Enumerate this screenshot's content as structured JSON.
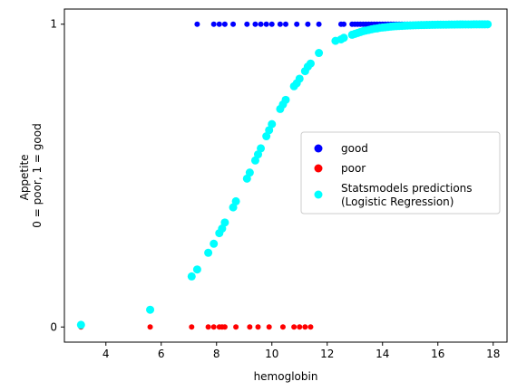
{
  "chart_data": {
    "type": "scatter",
    "xlabel": "hemoglobin",
    "ylabel_lines": [
      "Appetite",
      "0 = poor, 1 = good"
    ],
    "xlim": [
      2.5,
      18.5
    ],
    "ylim": [
      -0.05,
      1.05
    ],
    "x_ticks": [
      4,
      6,
      8,
      10,
      12,
      14,
      16,
      18
    ],
    "y_ticks": [
      0,
      1
    ],
    "grid": false,
    "legend_position": "center-right",
    "series": [
      {
        "name": "good",
        "color": "#0000ff",
        "marker_size": "small",
        "x": [
          7.3,
          7.9,
          8.1,
          8.3,
          8.6,
          9.1,
          9.4,
          9.6,
          9.8,
          10.0,
          10.3,
          10.5,
          10.9,
          11.3,
          11.7,
          12.5,
          12.6,
          12.9,
          13.0,
          13.1,
          13.2,
          13.3,
          13.4,
          13.5,
          13.6,
          13.7,
          13.8,
          13.9,
          14.0,
          14.1,
          14.2,
          14.3,
          14.4,
          14.5,
          14.6,
          14.7,
          14.8,
          14.9,
          15.0,
          15.1,
          15.2,
          15.3,
          15.4,
          15.5,
          15.6,
          15.7,
          15.8,
          15.9,
          16.0,
          16.1,
          16.2,
          16.3,
          16.4,
          16.5,
          16.6,
          16.7,
          16.8,
          16.9,
          17.0,
          17.1,
          17.2,
          17.3,
          17.4,
          17.5,
          17.6,
          17.7,
          17.8
        ],
        "y": [
          1,
          1,
          1,
          1,
          1,
          1,
          1,
          1,
          1,
          1,
          1,
          1,
          1,
          1,
          1,
          1,
          1,
          1,
          1,
          1,
          1,
          1,
          1,
          1,
          1,
          1,
          1,
          1,
          1,
          1,
          1,
          1,
          1,
          1,
          1,
          1,
          1,
          1,
          1,
          1,
          1,
          1,
          1,
          1,
          1,
          1,
          1,
          1,
          1,
          1,
          1,
          1,
          1,
          1,
          1,
          1,
          1,
          1,
          1,
          1,
          1,
          1,
          1,
          1,
          1,
          1,
          1
        ]
      },
      {
        "name": "poor",
        "color": "#ff0000",
        "marker_size": "small",
        "x": [
          3.1,
          5.6,
          7.1,
          7.7,
          7.9,
          8.1,
          8.2,
          8.3,
          8.7,
          9.2,
          9.5,
          9.9,
          10.4,
          10.8,
          11.0,
          11.2,
          11.4
        ],
        "y": [
          0,
          0,
          0,
          0,
          0,
          0,
          0,
          0,
          0,
          0,
          0,
          0,
          0,
          0,
          0,
          0,
          0
        ]
      },
      {
        "name": "Statsmodels predictions\n(Logistic Regression)",
        "legend_lines": [
          "Statsmodels predictions",
          "(Logistic Regression)"
        ],
        "color": "#00ffff",
        "marker_size": "large",
        "x": [
          3.1,
          5.6,
          7.1,
          7.3,
          7.7,
          7.9,
          8.1,
          8.2,
          8.3,
          8.6,
          8.7,
          9.1,
          9.2,
          9.4,
          9.5,
          9.6,
          9.8,
          9.9,
          10.0,
          10.3,
          10.4,
          10.5,
          10.8,
          10.9,
          11.0,
          11.2,
          11.3,
          11.4,
          11.7,
          12.3,
          12.5,
          12.6,
          12.9,
          13.0,
          13.1,
          13.2,
          13.3,
          13.4,
          13.5,
          13.6,
          13.7,
          13.8,
          13.9,
          14.0,
          14.1,
          14.2,
          14.3,
          14.4,
          14.5,
          14.6,
          14.7,
          14.8,
          14.9,
          15.0,
          15.1,
          15.2,
          15.3,
          15.4,
          15.5,
          15.6,
          15.7,
          15.8,
          15.9,
          16.0,
          16.1,
          16.2,
          16.3,
          16.4,
          16.5,
          16.6,
          16.7,
          16.8,
          16.9,
          17.0,
          17.1,
          17.2,
          17.3,
          17.4,
          17.5,
          17.6,
          17.7,
          17.8
        ],
        "y": [
          0.007,
          0.057,
          0.167,
          0.19,
          0.245,
          0.275,
          0.31,
          0.325,
          0.345,
          0.395,
          0.415,
          0.49,
          0.51,
          0.55,
          0.57,
          0.59,
          0.63,
          0.65,
          0.67,
          0.72,
          0.735,
          0.75,
          0.795,
          0.805,
          0.82,
          0.845,
          0.86,
          0.87,
          0.905,
          0.945,
          0.95,
          0.955,
          0.965,
          0.968,
          0.971,
          0.974,
          0.977,
          0.979,
          0.981,
          0.983,
          0.985,
          0.986,
          0.988,
          0.989,
          0.99,
          0.991,
          0.992,
          0.993,
          0.9935,
          0.994,
          0.9945,
          0.995,
          0.9955,
          0.996,
          0.9963,
          0.9966,
          0.9969,
          0.9972,
          0.9974,
          0.9976,
          0.9978,
          0.998,
          0.9982,
          0.9983,
          0.9984,
          0.9985,
          0.9986,
          0.9987,
          0.9988,
          0.9989,
          0.999,
          0.9991,
          0.9992,
          0.9992,
          0.9993,
          0.9993,
          0.9994,
          0.9994,
          0.9995,
          0.9995,
          0.9995,
          0.9996
        ]
      }
    ]
  }
}
